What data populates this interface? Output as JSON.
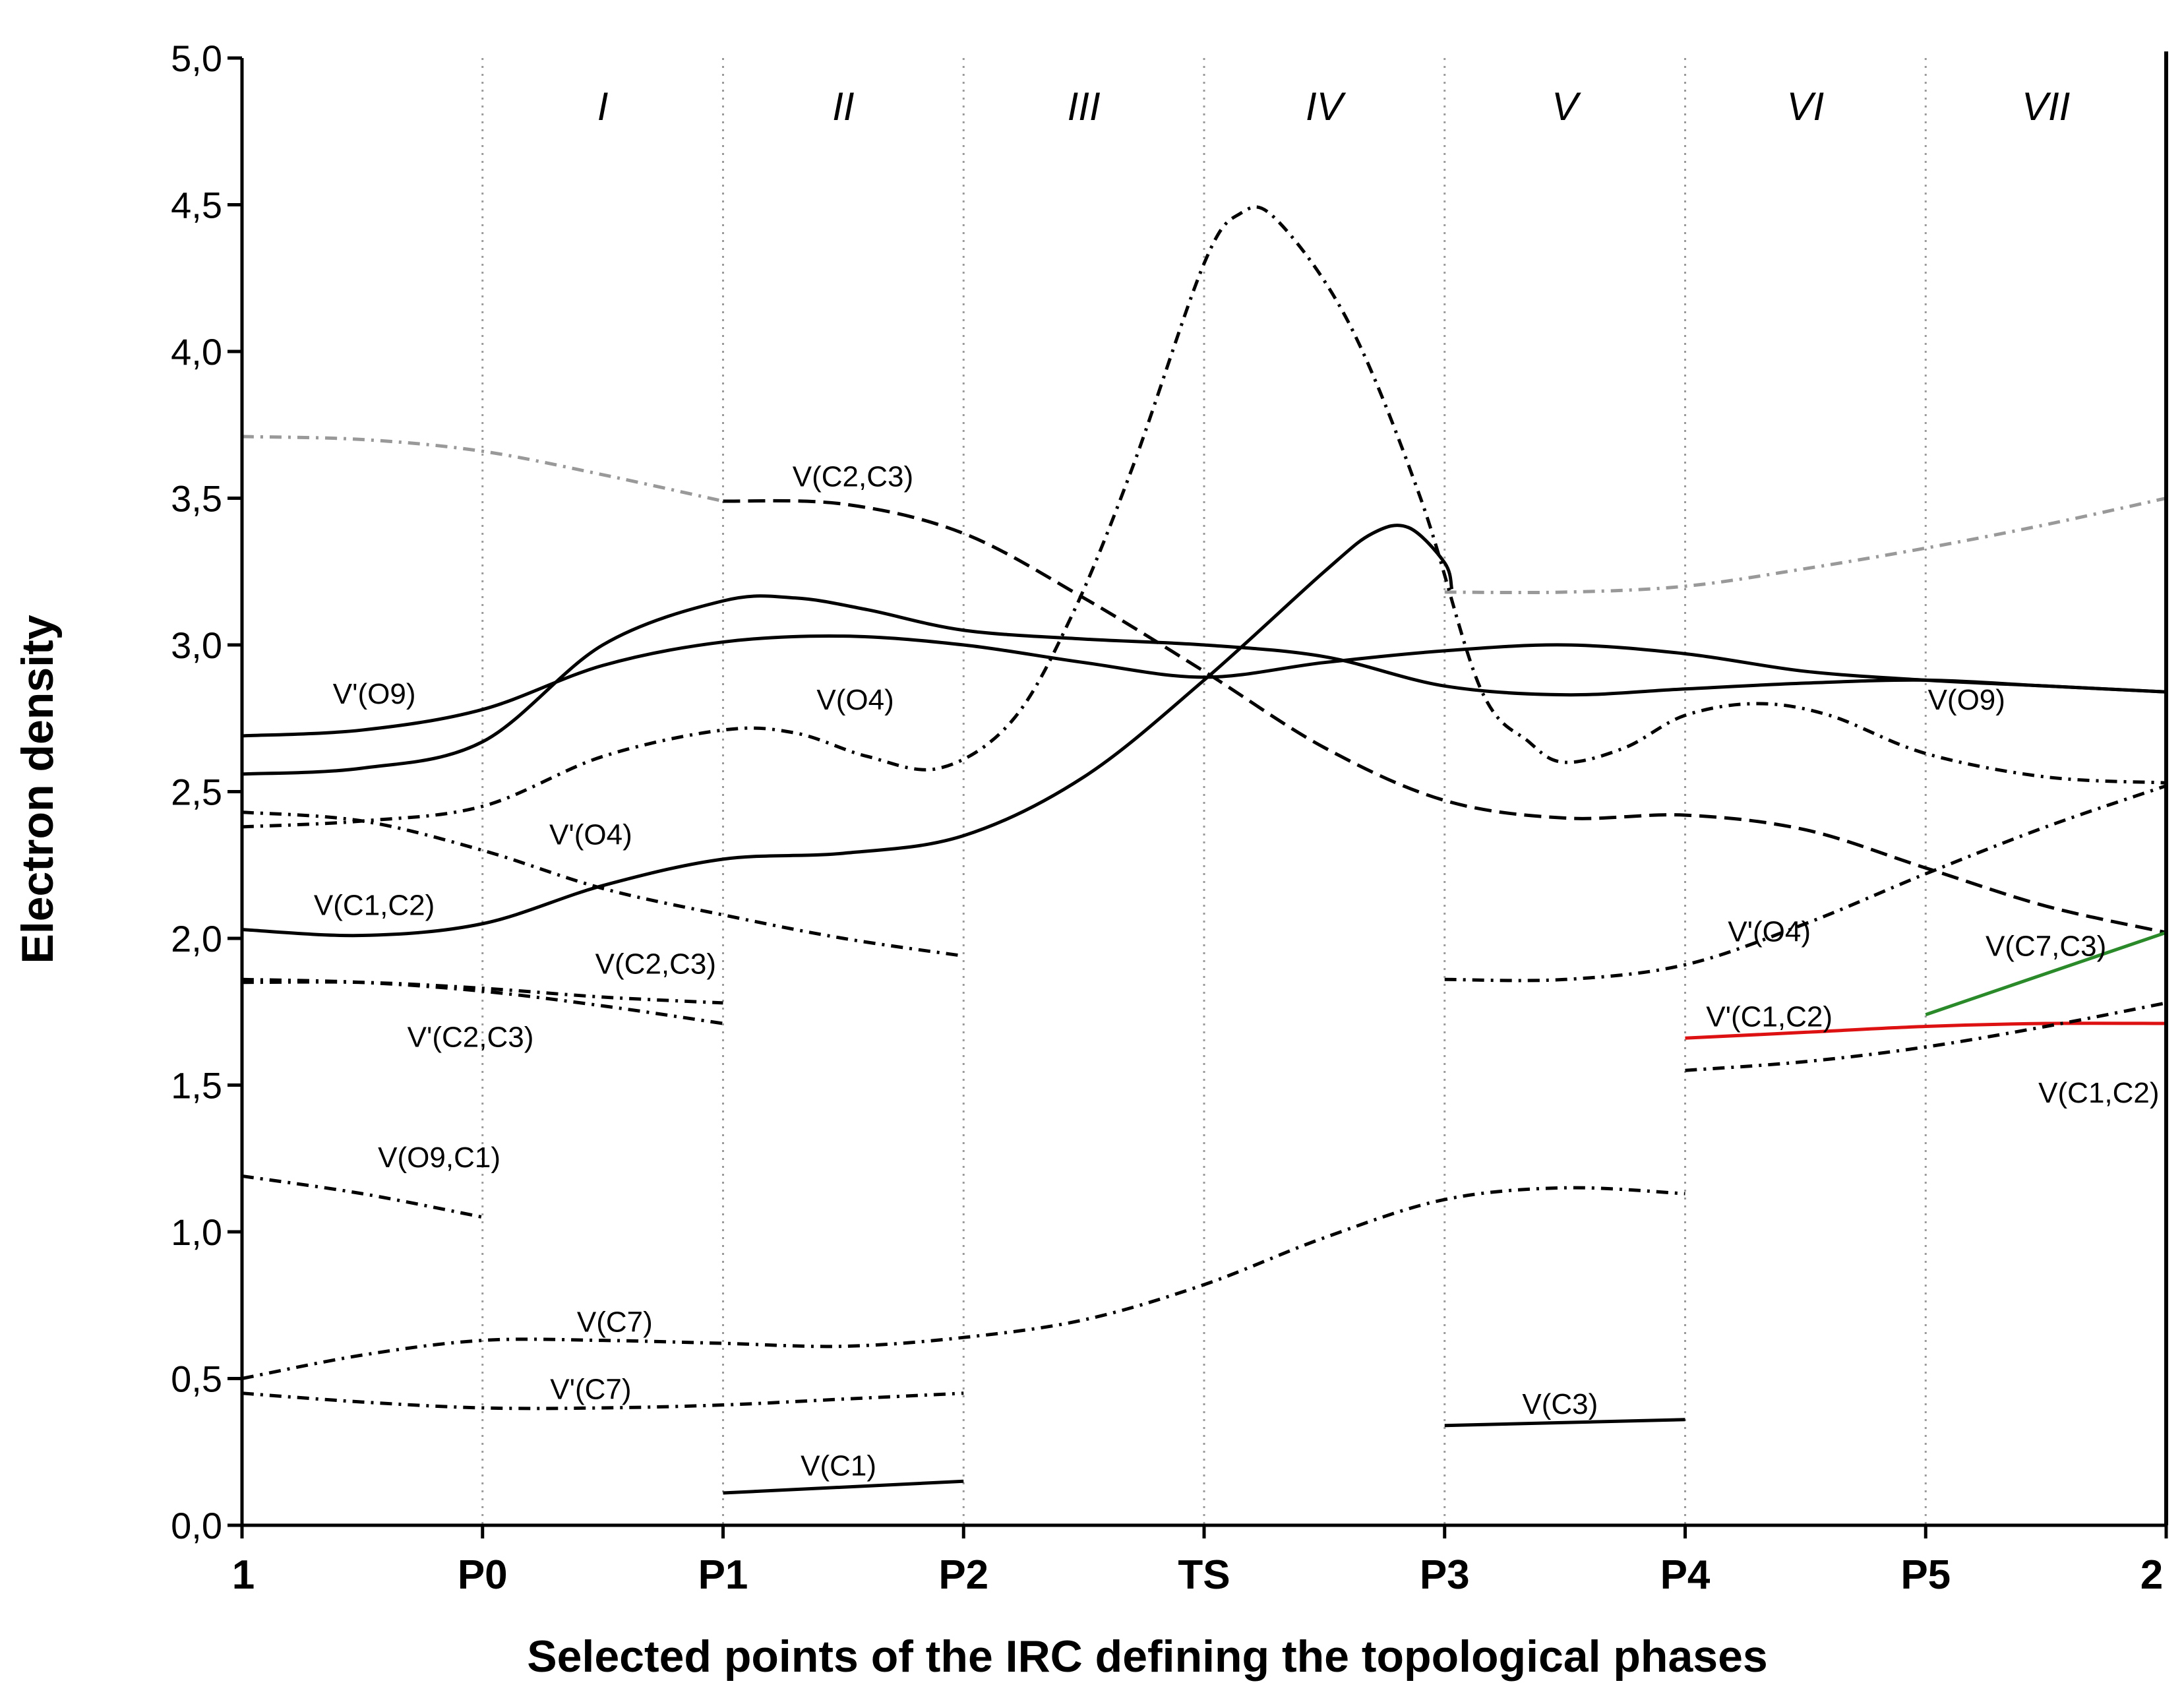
{
  "chart_data": {
    "type": "line",
    "xlabel": "Selected points of the IRC defining the topological phases",
    "ylabel": "Electron density",
    "ylim": [
      0,
      5.0
    ],
    "yticks": [
      "0,0",
      "0,5",
      "1,0",
      "1,5",
      "2,0",
      "2,5",
      "3,0",
      "3,5",
      "4,0",
      "4,5",
      "5,0"
    ],
    "categories": [
      "1",
      "P0",
      "P1",
      "P2",
      "TS",
      "P3",
      "P4",
      "P5",
      "2"
    ],
    "phases": [
      "I",
      "II",
      "III",
      "IV",
      "V",
      "VI",
      "VII"
    ],
    "grid": "vertical dotted lines at category points",
    "series": [
      {
        "label": "",
        "color": "#999999",
        "dash": "dashdot",
        "points": [
          [
            0,
            3.71
          ],
          [
            0.5,
            3.7
          ],
          [
            1,
            3.66
          ],
          [
            1.5,
            3.58
          ],
          [
            2,
            3.49
          ]
        ]
      },
      {
        "label": "",
        "color": "#999999",
        "dash": "dashdot",
        "points": [
          [
            5,
            3.18
          ],
          [
            5.5,
            3.18
          ],
          [
            6,
            3.2
          ],
          [
            6.5,
            3.26
          ],
          [
            7,
            3.33
          ],
          [
            7.5,
            3.41
          ],
          [
            8,
            3.5
          ]
        ]
      },
      {
        "label": "V'(O9)",
        "color": "#000000",
        "dash": "solid",
        "points": [
          [
            0,
            2.69
          ],
          [
            0.5,
            2.71
          ],
          [
            1,
            2.78
          ],
          [
            1.5,
            2.93
          ],
          [
            2,
            3.01
          ],
          [
            2.5,
            3.03
          ],
          [
            3,
            3.0
          ],
          [
            3.5,
            2.94
          ],
          [
            4,
            2.89
          ],
          [
            4.5,
            2.94
          ],
          [
            5,
            2.98
          ],
          [
            5.5,
            3.0
          ],
          [
            6,
            2.97
          ],
          [
            6.5,
            2.91
          ],
          [
            7,
            2.88
          ],
          [
            7.5,
            2.86
          ],
          [
            8,
            2.84
          ]
        ]
      },
      {
        "label": "V(O9)",
        "color": "#000000",
        "dash": "solid",
        "points": [
          [
            0,
            2.56
          ],
          [
            0.5,
            2.58
          ],
          [
            1,
            2.67
          ],
          [
            1.5,
            3.0
          ],
          [
            2,
            3.15
          ],
          [
            2.3,
            3.16
          ],
          [
            2.6,
            3.12
          ],
          [
            3,
            3.05
          ],
          [
            3.5,
            3.02
          ],
          [
            4,
            3.0
          ],
          [
            4.5,
            2.96
          ],
          [
            5,
            2.86
          ],
          [
            5.5,
            2.83
          ],
          [
            6,
            2.85
          ],
          [
            6.5,
            2.87
          ],
          [
            7,
            2.88
          ],
          [
            7.5,
            2.86
          ],
          [
            8,
            2.84
          ]
        ]
      },
      {
        "label": "V(C1,C2)",
        "color": "#000000",
        "dash": "solid",
        "points": [
          [
            0,
            2.03
          ],
          [
            0.5,
            2.01
          ],
          [
            1,
            2.05
          ],
          [
            1.5,
            2.18
          ],
          [
            2,
            2.27
          ],
          [
            2.5,
            2.29
          ],
          [
            3,
            2.35
          ],
          [
            3.5,
            2.55
          ],
          [
            4,
            2.88
          ],
          [
            4.5,
            3.25
          ],
          [
            4.7,
            3.38
          ],
          [
            4.85,
            3.4
          ],
          [
            5,
            3.28
          ],
          [
            5.03,
            3.19
          ]
        ]
      },
      {
        "label": "V(C2,C3)",
        "color": "#000000",
        "dash": "dashed",
        "points": [
          [
            2,
            3.49
          ],
          [
            2.5,
            3.48
          ],
          [
            3,
            3.38
          ],
          [
            3.5,
            3.16
          ],
          [
            4,
            2.91
          ],
          [
            4.5,
            2.65
          ],
          [
            5,
            2.47
          ],
          [
            5.5,
            2.41
          ],
          [
            6,
            2.42
          ],
          [
            6.5,
            2.37
          ],
          [
            7,
            2.24
          ],
          [
            7.5,
            2.11
          ],
          [
            8,
            2.02
          ]
        ]
      },
      {
        "label": "V(O4)",
        "color": "#000000",
        "dash": "dashdot",
        "points": [
          [
            0,
            2.38
          ],
          [
            0.5,
            2.4
          ],
          [
            1,
            2.45
          ],
          [
            1.5,
            2.62
          ],
          [
            2,
            2.71
          ],
          [
            2.3,
            2.7
          ],
          [
            2.6,
            2.62
          ],
          [
            2.9,
            2.58
          ],
          [
            3.2,
            2.74
          ],
          [
            3.45,
            3.1
          ],
          [
            3.7,
            3.6
          ],
          [
            4,
            4.3
          ],
          [
            4.15,
            4.47
          ],
          [
            4.3,
            4.45
          ],
          [
            4.6,
            4.1
          ],
          [
            4.9,
            3.5
          ],
          [
            5.15,
            2.85
          ],
          [
            5.35,
            2.67
          ],
          [
            5.5,
            2.6
          ],
          [
            5.75,
            2.65
          ],
          [
            6,
            2.76
          ],
          [
            6.3,
            2.8
          ],
          [
            6.6,
            2.76
          ],
          [
            7,
            2.63
          ],
          [
            7.5,
            2.55
          ],
          [
            8,
            2.53
          ]
        ]
      },
      {
        "label": "V'(O4)",
        "color": "#000000",
        "dash": "dashdot",
        "points": [
          [
            0,
            2.43
          ],
          [
            0.5,
            2.4
          ],
          [
            1,
            2.3
          ],
          [
            1.5,
            2.17
          ],
          [
            2,
            2.08
          ],
          [
            2.5,
            2.0
          ],
          [
            3,
            1.94
          ]
        ]
      },
      {
        "label": "V'(O4)",
        "color": "#000000",
        "dash": "dashdot",
        "points": [
          [
            5,
            1.86
          ],
          [
            5.5,
            1.86
          ],
          [
            6,
            1.91
          ],
          [
            6.5,
            2.05
          ],
          [
            7,
            2.22
          ],
          [
            7.5,
            2.38
          ],
          [
            8,
            2.52
          ]
        ]
      },
      {
        "label": "V(C2,C3)",
        "color": "#000000",
        "dash": "dashdot",
        "points": [
          [
            0,
            1.85
          ],
          [
            0.5,
            1.85
          ],
          [
            1,
            1.83
          ],
          [
            1.5,
            1.8
          ],
          [
            2,
            1.78
          ]
        ]
      },
      {
        "label": "V'(C2,C3)",
        "color": "#000000",
        "dash": "dashdot",
        "points": [
          [
            0,
            1.86
          ],
          [
            0.5,
            1.85
          ],
          [
            1,
            1.82
          ],
          [
            1.5,
            1.77
          ],
          [
            2,
            1.71
          ]
        ]
      },
      {
        "label": "V(C7,C3)",
        "color": "#2a8a2a",
        "dash": "solid",
        "points": [
          [
            7,
            1.74
          ],
          [
            8,
            2.02
          ]
        ]
      },
      {
        "label": "V'(C1,C2)",
        "color": "#dd1111",
        "dash": "solid",
        "points": [
          [
            6,
            1.66
          ],
          [
            6.5,
            1.68
          ],
          [
            7,
            1.7
          ],
          [
            7.5,
            1.71
          ],
          [
            8,
            1.71
          ]
        ]
      },
      {
        "label": "V(C1,C2)",
        "color": "#000000",
        "dash": "dashdot",
        "points": [
          [
            6,
            1.55
          ],
          [
            6.5,
            1.58
          ],
          [
            7,
            1.63
          ],
          [
            7.5,
            1.7
          ],
          [
            8,
            1.78
          ]
        ]
      },
      {
        "label": "V(O9,C1)",
        "color": "#000000",
        "dash": "dashdot",
        "points": [
          [
            0,
            1.19
          ],
          [
            0.5,
            1.13
          ],
          [
            1,
            1.05
          ]
        ]
      },
      {
        "label": "V(C7)",
        "color": "#000000",
        "dash": "dashdot",
        "points": [
          [
            0,
            0.5
          ],
          [
            0.5,
            0.58
          ],
          [
            1,
            0.63
          ],
          [
            1.5,
            0.63
          ],
          [
            2,
            0.62
          ],
          [
            2.5,
            0.61
          ],
          [
            3,
            0.64
          ],
          [
            3.5,
            0.7
          ],
          [
            4,
            0.82
          ],
          [
            4.5,
            0.98
          ],
          [
            5,
            1.11
          ],
          [
            5.5,
            1.15
          ],
          [
            6,
            1.13
          ]
        ]
      },
      {
        "label": "V'(C7)",
        "color": "#000000",
        "dash": "dashdot",
        "points": [
          [
            0,
            0.45
          ],
          [
            0.5,
            0.42
          ],
          [
            1,
            0.4
          ],
          [
            1.5,
            0.4
          ],
          [
            2,
            0.41
          ],
          [
            2.5,
            0.43
          ],
          [
            3,
            0.45
          ]
        ]
      },
      {
        "label": "V(C1)",
        "color": "#000000",
        "dash": "solid",
        "points": [
          [
            2,
            0.11
          ],
          [
            3,
            0.15
          ]
        ]
      },
      {
        "label": "V(C3)",
        "color": "#000000",
        "dash": "solid",
        "points": [
          [
            5,
            0.34
          ],
          [
            6,
            0.36
          ]
        ]
      }
    ],
    "annotations": [
      {
        "text": "V'(O9)",
        "x": 0.55,
        "y": 2.8
      },
      {
        "text": "V(C2,C3)",
        "x": 2.54,
        "y": 3.54
      },
      {
        "text": "V(O4)",
        "x": 2.55,
        "y": 2.78
      },
      {
        "text": "V'(O4)",
        "x": 1.45,
        "y": 2.32
      },
      {
        "text": "V(C1,C2)",
        "x": 0.55,
        "y": 2.08
      },
      {
        "text": "V(C2,C3)",
        "x": 1.72,
        "y": 1.88
      },
      {
        "text": "V'(C2,C3)",
        "x": 0.95,
        "y": 1.63
      },
      {
        "text": "V(O9,C1)",
        "x": 0.82,
        "y": 1.22
      },
      {
        "text": "V(C7)",
        "x": 1.55,
        "y": 0.66
      },
      {
        "text": "V'(C7)",
        "x": 1.45,
        "y": 0.43
      },
      {
        "text": "V(C1)",
        "x": 2.48,
        "y": 0.17
      },
      {
        "text": "V(C3)",
        "x": 5.48,
        "y": 0.38
      },
      {
        "text": "V(O9)",
        "x": 7.17,
        "y": 2.78
      },
      {
        "text": "V'(O4)",
        "x": 6.35,
        "y": 1.99
      },
      {
        "text": "V(C7,C3)",
        "x": 7.5,
        "y": 1.94
      },
      {
        "text": "V'(C1,C2)",
        "x": 6.35,
        "y": 1.7
      },
      {
        "text": "V(C1,C2)",
        "x": 7.72,
        "y": 1.44
      }
    ]
  }
}
